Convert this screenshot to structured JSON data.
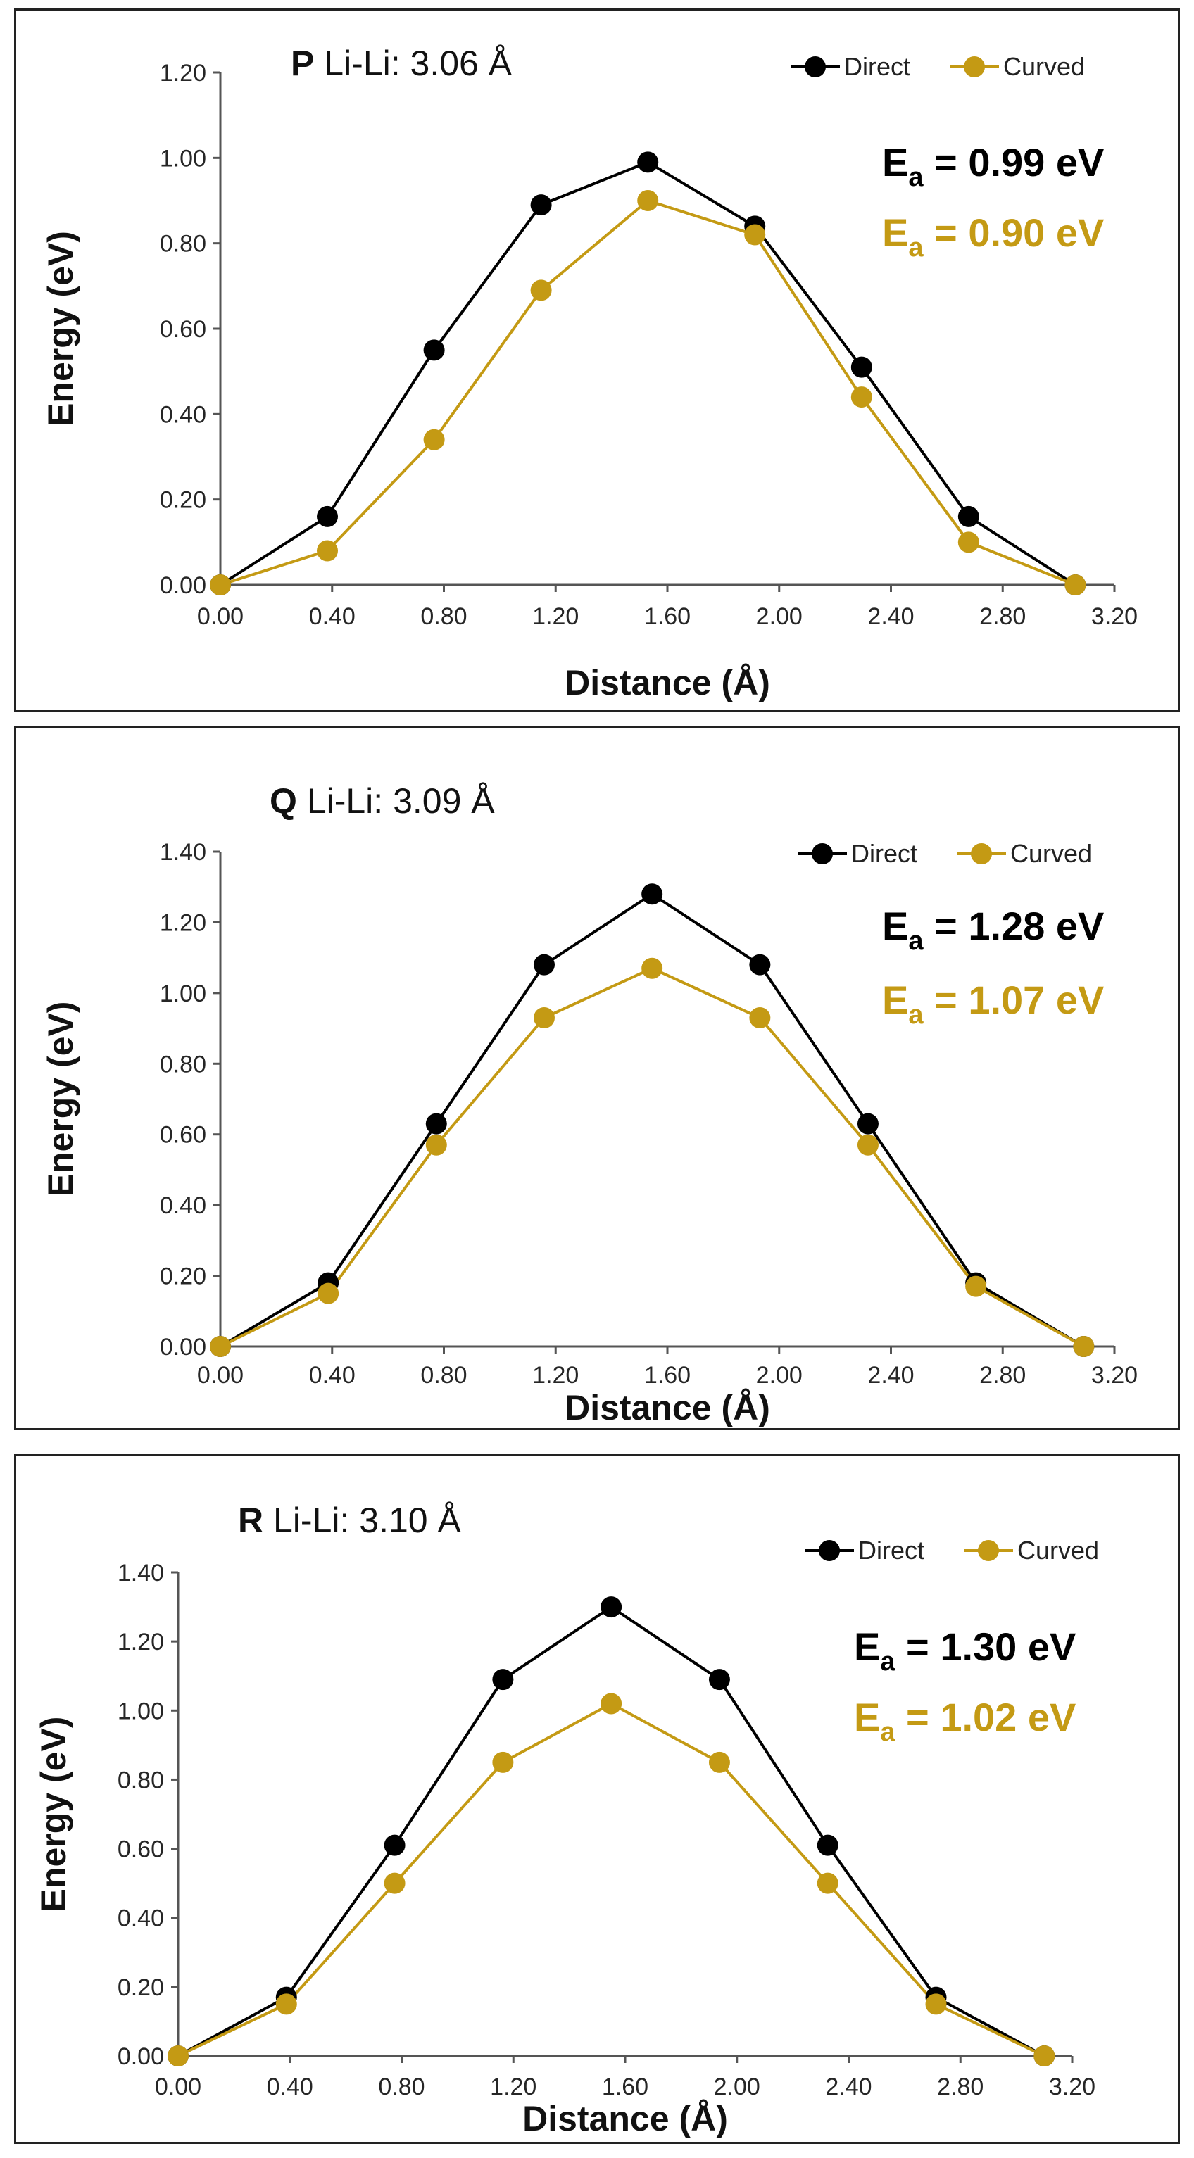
{
  "chart_data": [
    {
      "type": "line",
      "panel_letter": "P",
      "title": "Li-Li: 3.06 Å",
      "xlabel": "Distance (Å)",
      "ylabel": "Energy (eV)",
      "xlim": [
        0,
        3.2
      ],
      "ylim": [
        0,
        1.2
      ],
      "xticks": [
        "0.00",
        "0.40",
        "0.80",
        "1.20",
        "1.60",
        "2.00",
        "2.40",
        "2.80",
        "3.20"
      ],
      "yticks": [
        "0.00",
        "0.20",
        "0.40",
        "0.60",
        "0.80",
        "1.00",
        "1.20"
      ],
      "x": [
        0.0,
        0.383,
        0.765,
        1.148,
        1.53,
        1.913,
        2.295,
        2.678,
        3.06
      ],
      "series": [
        {
          "name": "Direct",
          "color": "#000000",
          "values": [
            0.0,
            0.16,
            0.55,
            0.89,
            0.99,
            0.84,
            0.51,
            0.16,
            0.0
          ]
        },
        {
          "name": "Curved",
          "color": "#C49A14",
          "values": [
            0.0,
            0.08,
            0.34,
            0.69,
            0.9,
            0.82,
            0.44,
            0.1,
            0.0
          ]
        }
      ],
      "annotations": [
        {
          "label": "E",
          "sub": "a",
          "text": " = 0.99 eV",
          "color": "#000000"
        },
        {
          "label": "E",
          "sub": "a",
          "text": " = 0.90 eV",
          "color": "#C49A14"
        }
      ],
      "legend": "top-right"
    },
    {
      "type": "line",
      "panel_letter": "Q",
      "title": "Li-Li: 3.09 Å",
      "xlabel": "Distance (Å)",
      "ylabel": "Energy (eV)",
      "xlim": [
        0,
        3.2
      ],
      "ylim": [
        0,
        1.4
      ],
      "xticks": [
        "0.00",
        "0.40",
        "0.80",
        "1.20",
        "1.60",
        "2.00",
        "2.40",
        "2.80",
        "3.20"
      ],
      "yticks": [
        "0.00",
        "0.20",
        "0.40",
        "0.60",
        "0.80",
        "1.00",
        "1.20",
        "1.40"
      ],
      "x": [
        0.0,
        0.386,
        0.773,
        1.159,
        1.545,
        1.931,
        2.318,
        2.704,
        3.09
      ],
      "series": [
        {
          "name": "Direct",
          "color": "#000000",
          "values": [
            0.0,
            0.18,
            0.63,
            1.08,
            1.28,
            1.08,
            0.63,
            0.18,
            0.0
          ]
        },
        {
          "name": "Curved",
          "color": "#C49A14",
          "values": [
            0.0,
            0.15,
            0.57,
            0.93,
            1.07,
            0.93,
            0.57,
            0.17,
            0.0
          ]
        }
      ],
      "annotations": [
        {
          "label": "E",
          "sub": "a",
          "text": " = 1.28 eV",
          "color": "#000000"
        },
        {
          "label": "E",
          "sub": "a",
          "text": " = 1.07 eV",
          "color": "#C49A14"
        }
      ],
      "legend": "top-right"
    },
    {
      "type": "line",
      "panel_letter": "R",
      "title": "Li-Li: 3.10 Å",
      "xlabel": "Distance (Å)",
      "ylabel": "Energy (eV)",
      "xlim": [
        0,
        3.2
      ],
      "ylim": [
        0,
        1.4
      ],
      "xticks": [
        "0.00",
        "0.40",
        "0.80",
        "1.20",
        "1.60",
        "2.00",
        "2.40",
        "2.80",
        "3.20"
      ],
      "yticks": [
        "0.00",
        "0.20",
        "0.40",
        "0.60",
        "0.80",
        "1.00",
        "1.20",
        "1.40"
      ],
      "x": [
        0.0,
        0.3875,
        0.775,
        1.1625,
        1.55,
        1.9375,
        2.325,
        2.7125,
        3.1
      ],
      "series": [
        {
          "name": "Direct",
          "color": "#000000",
          "values": [
            0.0,
            0.17,
            0.61,
            1.09,
            1.3,
            1.09,
            0.61,
            0.17,
            0.0
          ]
        },
        {
          "name": "Curved",
          "color": "#C49A14",
          "values": [
            0.0,
            0.15,
            0.5,
            0.85,
            1.02,
            0.85,
            0.5,
            0.15,
            0.0
          ]
        }
      ],
      "annotations": [
        {
          "label": "E",
          "sub": "a",
          "text": " = 1.30 eV",
          "color": "#000000"
        },
        {
          "label": "E",
          "sub": "a",
          "text": " = 1.02 eV",
          "color": "#C49A14"
        }
      ],
      "legend": "top-right"
    }
  ]
}
